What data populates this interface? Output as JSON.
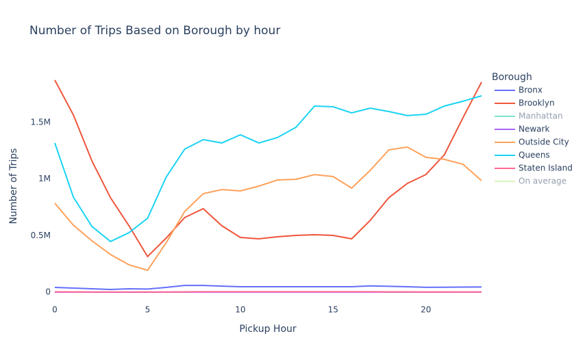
{
  "chart_data": {
    "type": "line",
    "title": "Number of Trips Based on Borough by hour",
    "xlabel": "Pickup Hour",
    "ylabel": "Number of Trips",
    "legend_title": "Borough",
    "legend": "right",
    "x": [
      0,
      1,
      2,
      3,
      4,
      5,
      6,
      7,
      8,
      9,
      10,
      11,
      12,
      13,
      14,
      15,
      16,
      17,
      18,
      19,
      20,
      21,
      22,
      23
    ],
    "xlim": [
      0,
      23
    ],
    "xticks": [
      0,
      5,
      10,
      15,
      20
    ],
    "ylim": [
      -109000,
      1978000
    ],
    "yticks": [
      0,
      {
        "value": 500000,
        "label": "0.5M"
      },
      {
        "value": 1000000,
        "label": "1M"
      },
      {
        "value": 1500000,
        "label": "1.5M"
      }
    ],
    "grid": false,
    "series": [
      {
        "name": "Bronx",
        "color": "#636efa",
        "values": [
          42000,
          36000,
          30000,
          24000,
          30000,
          28000,
          42000,
          60000,
          60000,
          54000,
          48000,
          48000,
          48000,
          48000,
          48000,
          48000,
          48000,
          56000,
          52000,
          48000,
          43000,
          44000,
          45000,
          46000
        ]
      },
      {
        "name": "Brooklyn",
        "color": "#ef553b",
        "values": [
          1875000,
          1567000,
          1160000,
          835000,
          587000,
          315000,
          478000,
          660000,
          738000,
          587000,
          484000,
          472000,
          490000,
          502000,
          508000,
          502000,
          472000,
          635000,
          835000,
          962000,
          1040000,
          1216000,
          1543000,
          1857000
        ]
      },
      {
        "name": "Manhattan",
        "color": "#00cc96",
        "hidden": true,
        "values": [
          null,
          null,
          null,
          null,
          null,
          null,
          null,
          null,
          null,
          null,
          null,
          null,
          null,
          null,
          null,
          null,
          null,
          null,
          null,
          null,
          null,
          null,
          null,
          null
        ]
      },
      {
        "name": "Newark",
        "color": "#ab63fa",
        "values": [
          500,
          300,
          200,
          100,
          100,
          100,
          200,
          400,
          500,
          500,
          500,
          500,
          500,
          500,
          500,
          500,
          500,
          500,
          500,
          500,
          500,
          500,
          500,
          500
        ]
      },
      {
        "name": "Outside City",
        "color": "#ffa15a",
        "values": [
          786000,
          593000,
          454000,
          333000,
          242000,
          194000,
          436000,
          714000,
          871000,
          907000,
          895000,
          938000,
          992000,
          998000,
          1040000,
          1022000,
          920000,
          1077000,
          1258000,
          1283000,
          1192000,
          1174000,
          1131000,
          986000
        ]
      },
      {
        "name": "Queens",
        "color": "#19d3f3",
        "values": [
          1319000,
          841000,
          581000,
          448000,
          526000,
          653000,
          1016000,
          1264000,
          1349000,
          1319000,
          1391000,
          1319000,
          1367000,
          1458000,
          1645000,
          1639000,
          1585000,
          1627000,
          1597000,
          1561000,
          1573000,
          1645000,
          1688000,
          1736000
        ]
      },
      {
        "name": "Staten Island",
        "color": "#ff6692",
        "values": [
          3000,
          2500,
          2000,
          1500,
          1500,
          1500,
          2000,
          3000,
          3500,
          3500,
          3500,
          3500,
          3500,
          3500,
          3500,
          3500,
          3500,
          3500,
          3000,
          3000,
          2500,
          2500,
          2500,
          2500
        ]
      },
      {
        "name": "On average",
        "color": "#b6e880",
        "hidden": true,
        "values": [
          null,
          null,
          null,
          null,
          null,
          null,
          null,
          null,
          null,
          null,
          null,
          null,
          null,
          null,
          null,
          null,
          null,
          null,
          null,
          null,
          null,
          null,
          null,
          null
        ]
      }
    ]
  }
}
